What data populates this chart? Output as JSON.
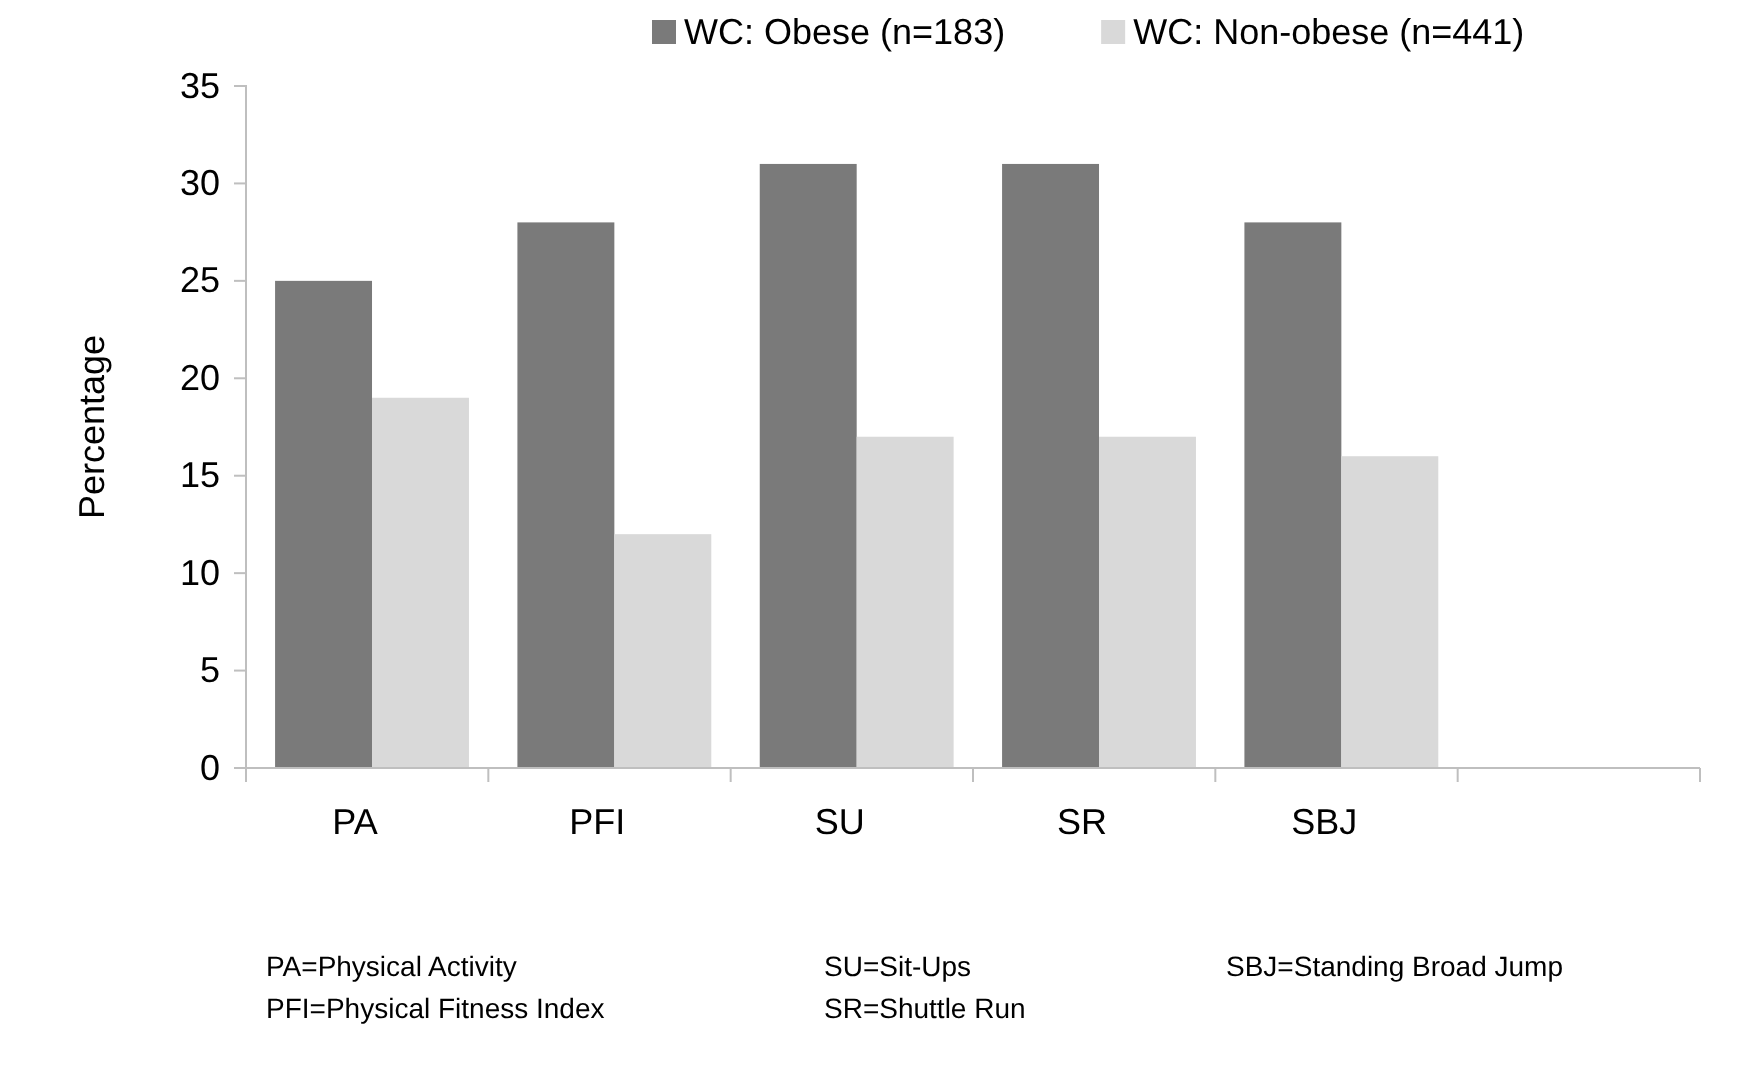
{
  "chart_data": {
    "type": "bar",
    "ylabel": "Percentage",
    "categories": [
      "PA",
      "PFI",
      "SU",
      "SR",
      "SBJ",
      null
    ],
    "series": [
      {
        "name": "WC: Obese (n=183)",
        "color": "#7a7a7a",
        "values": [
          25,
          28,
          31,
          31,
          28,
          null
        ]
      },
      {
        "name": "WC: Non-obese (n=441)",
        "color": "#d9d9d9",
        "values": [
          19,
          12,
          17,
          17,
          16,
          null
        ]
      }
    ],
    "ylim": [
      0,
      35
    ],
    "yticks": [
      0,
      5,
      10,
      15,
      20,
      25,
      30,
      35
    ],
    "grid": false,
    "legend": "top",
    "annotations": [
      "PA=Physical Activity",
      "PFI=Physical Fitness Index",
      "SU=Sit-Ups",
      "SR=Shuttle Run",
      "SBJ=Standing Broad Jump"
    ]
  }
}
